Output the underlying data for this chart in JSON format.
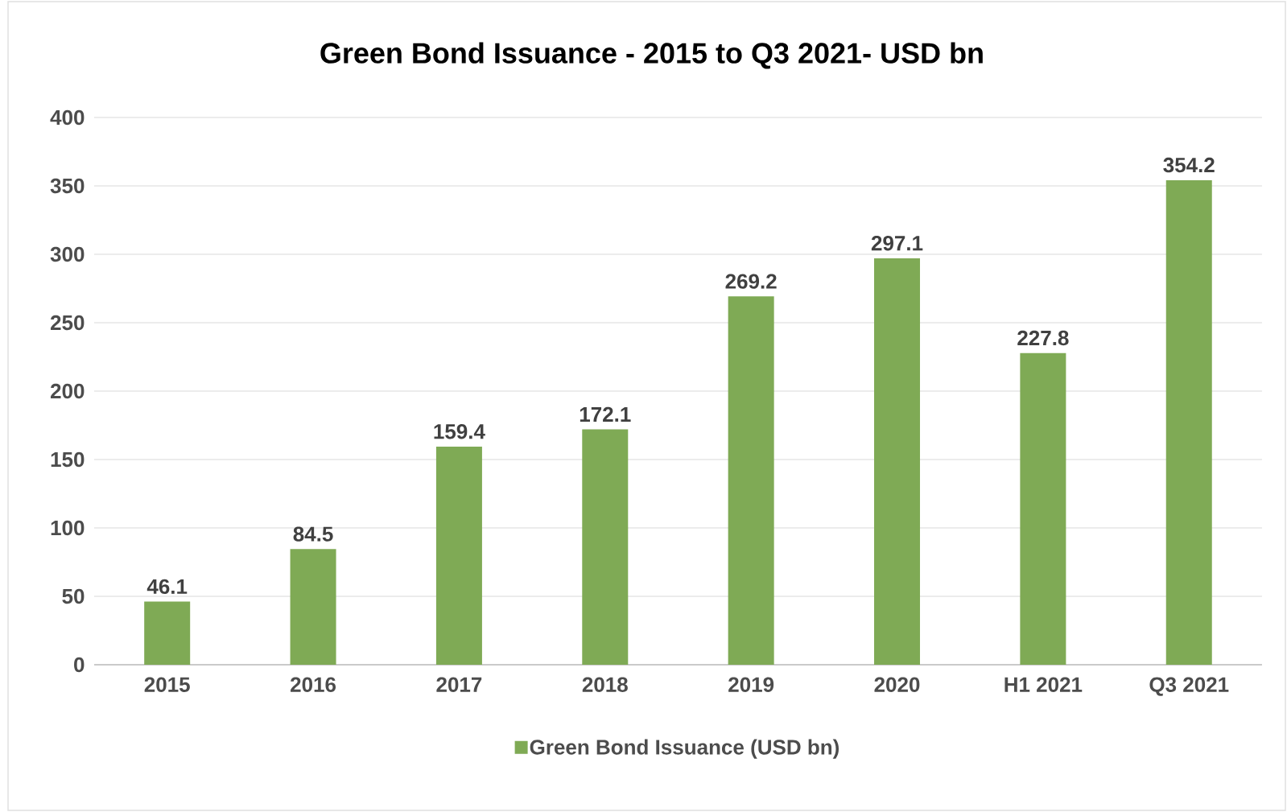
{
  "chart_data": {
    "type": "bar",
    "title": "Green Bond Issuance - 2015 to Q3 2021- USD bn",
    "categories": [
      "2015",
      "2016",
      "2017",
      "2018",
      "2019",
      "2020",
      "H1 2021",
      "Q3 2021"
    ],
    "series": [
      {
        "name": "Green Bond Issuance (USD bn)",
        "color": "#7faa55",
        "values": [
          46.1,
          84.5,
          159.4,
          172.1,
          269.2,
          297.1,
          227.8,
          354.2
        ]
      }
    ],
    "ylim": [
      0,
      400
    ],
    "yticks": [
      0,
      50,
      100,
      150,
      200,
      250,
      300,
      350,
      400
    ],
    "grid": "y",
    "legend": "bottom",
    "data_labels": true
  }
}
